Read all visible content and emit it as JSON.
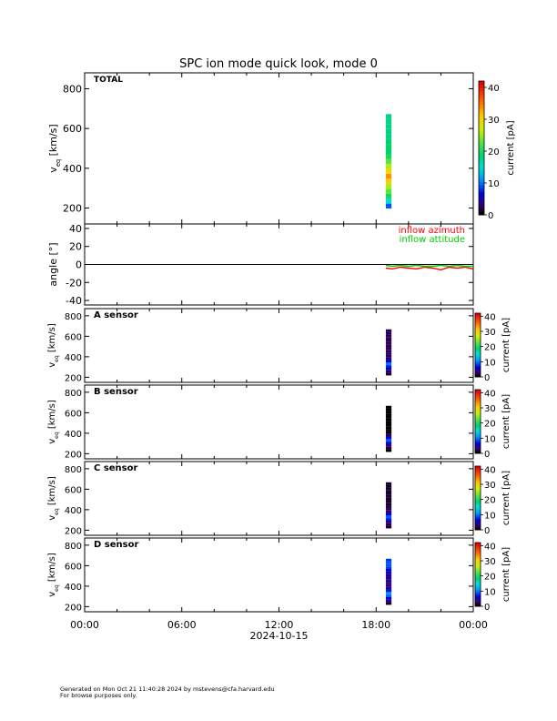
{
  "title": "SPC ion mode quick look, mode 0",
  "footer": {
    "line1": "Generated on Mon Oct 21 11:40:28 2024 by mstevens@cfa.harvard.edu",
    "line2": "For browse purposes only."
  },
  "chart_data": {
    "type": "heatmap",
    "x_ticks": [
      "00:00",
      "06:00",
      "12:00",
      "18:00",
      "00:00"
    ],
    "x_tick_hours": [
      0,
      6,
      12,
      18,
      24
    ],
    "x_label": "2024-10-15",
    "data_interval_hours": [
      18.6,
      18.95
    ],
    "panels": [
      {
        "id": "total",
        "label": "TOTAL",
        "kind": "spectrogram",
        "ylabel": "v_eq [km/s]",
        "ylim": [
          120,
          880
        ],
        "yticks": [
          200,
          400,
          600,
          800
        ],
        "colorbar": {
          "label": "current [pA]",
          "ticks": [
            0,
            10,
            20,
            30,
            40
          ],
          "range": [
            0,
            42
          ]
        },
        "velocity_bins": [
          210,
          235,
          260,
          285,
          310,
          335,
          360,
          385,
          410,
          435,
          460,
          485,
          510,
          535,
          560,
          585,
          610,
          635,
          660
        ],
        "currents": [
          9,
          15,
          20,
          23,
          26,
          31,
          34,
          30,
          26,
          23,
          20,
          19,
          19,
          19,
          18,
          18,
          18,
          18,
          18
        ]
      },
      {
        "id": "angle",
        "kind": "line",
        "ylabel": "angle [°]",
        "ylim": [
          -45,
          45
        ],
        "yticks": [
          -40,
          -20,
          0,
          20,
          40
        ],
        "series": [
          {
            "name": "inflow azimuth",
            "color": "#ff0000",
            "x_hours": [
              18.6,
              19.0,
              19.5,
              20.0,
              20.5,
              21.0,
              21.5,
              22.0,
              22.5,
              23.0,
              23.5,
              24.0
            ],
            "values": [
              -4,
              -5,
              -3,
              -4,
              -5,
              -3,
              -4,
              -6,
              -3,
              -4,
              -3,
              -5
            ]
          },
          {
            "name": "inflow attitude",
            "color": "#00cc00",
            "x_hours": [
              18.6,
              19.0,
              19.5,
              20.0,
              20.5,
              21.0,
              21.5,
              22.0,
              22.5,
              23.0,
              23.5,
              24.0
            ],
            "values": [
              -1,
              -2,
              -1,
              -2,
              -1,
              -2,
              -2,
              -1,
              -2,
              -1,
              -2,
              -2
            ]
          }
        ]
      },
      {
        "id": "a",
        "label": "A sensor",
        "kind": "spectrogram",
        "ylabel": "v_eq [km/s]",
        "ylim": [
          150,
          870
        ],
        "yticks": [
          200,
          400,
          600,
          800
        ],
        "colorbar": {
          "label": "current [pA]",
          "ticks": [
            0,
            10,
            20,
            30,
            40
          ],
          "range": [
            0,
            42
          ]
        },
        "velocity_bins": [
          230,
          255,
          280,
          305,
          330,
          355,
          380,
          405,
          430,
          455,
          480,
          505,
          530,
          555,
          580,
          605,
          630,
          655
        ],
        "currents": [
          1,
          2,
          5,
          7,
          10,
          6,
          3,
          2,
          2,
          2,
          2,
          2,
          2,
          2,
          2,
          2,
          2,
          2
        ]
      },
      {
        "id": "b",
        "label": "B sensor",
        "kind": "spectrogram",
        "ylabel": "v_eq [km/s]",
        "ylim": [
          150,
          870
        ],
        "yticks": [
          200,
          400,
          600,
          800
        ],
        "colorbar": {
          "label": "current [pA]",
          "ticks": [
            0,
            10,
            20,
            30,
            40
          ],
          "range": [
            0,
            42
          ]
        },
        "velocity_bins": [
          230,
          255,
          280,
          305,
          330,
          355,
          380,
          405,
          430,
          455,
          480,
          505,
          530,
          555,
          580,
          605,
          630,
          655
        ],
        "currents": [
          0,
          1,
          3,
          6,
          9,
          6,
          2,
          0,
          0,
          0,
          0,
          0,
          0,
          0,
          0,
          0,
          0,
          0
        ]
      },
      {
        "id": "c",
        "label": "C sensor",
        "kind": "spectrogram",
        "ylabel": "v_eq [km/s]",
        "ylim": [
          150,
          870
        ],
        "yticks": [
          200,
          400,
          600,
          800
        ],
        "colorbar": {
          "label": "current [pA]",
          "ticks": [
            0,
            10,
            20,
            30,
            40
          ],
          "range": [
            0,
            42
          ]
        },
        "velocity_bins": [
          230,
          255,
          280,
          305,
          330,
          355,
          380,
          405,
          430,
          455,
          480,
          505,
          530,
          555,
          580,
          605,
          630,
          655
        ],
        "currents": [
          1,
          2,
          4,
          7,
          9,
          6,
          3,
          2,
          1,
          1,
          1,
          1,
          1,
          1,
          1,
          1,
          1,
          1
        ]
      },
      {
        "id": "d",
        "label": "D sensor",
        "kind": "spectrogram",
        "ylabel": "v_eq [km/s]",
        "ylim": [
          150,
          870
        ],
        "yticks": [
          200,
          400,
          600,
          800
        ],
        "colorbar": {
          "label": "current [pA]",
          "ticks": [
            0,
            10,
            20,
            30,
            40
          ],
          "range": [
            0,
            42
          ]
        },
        "velocity_bins": [
          230,
          255,
          280,
          305,
          330,
          355,
          380,
          405,
          430,
          455,
          480,
          505,
          530,
          555,
          580,
          605,
          630,
          655
        ],
        "currents": [
          1,
          3,
          6,
          9,
          11,
          7,
          4,
          3,
          3,
          4,
          4,
          4,
          5,
          6,
          8,
          9,
          9,
          8
        ]
      }
    ]
  }
}
